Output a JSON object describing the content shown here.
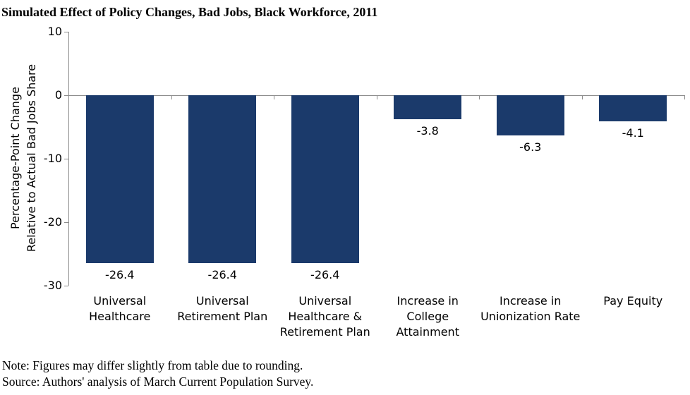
{
  "chart_data": {
    "type": "bar",
    "title": "Simulated Effect of Policy Changes, Bad Jobs, Black Workforce, 2011",
    "ylabel": "Percentage-Point Change\nRelative to Actual Bad Jobs Share",
    "xlabel": "",
    "categories": [
      "Universal\nHealthcare",
      "Universal\nRetirement Plan",
      "Universal\nHealthcare &\nRetirement Plan",
      "Increase in\nCollege\nAttainment",
      "Increase in\nUnionization Rate",
      "Pay Equity"
    ],
    "values": [
      -26.4,
      -26.4,
      -26.4,
      -3.8,
      -6.3,
      -4.1
    ],
    "data_labels": [
      "-26.4",
      "-26.4",
      "-26.4",
      "-3.8",
      "-6.3",
      "-4.1"
    ],
    "yticks": [
      10,
      0,
      -10,
      -20,
      -30
    ],
    "ylim": [
      -30,
      10
    ],
    "grid": "off",
    "legend": "none",
    "bar_color": "#1B3A6B",
    "axis_color": "#8C8C8C"
  },
  "notes": {
    "note_line": "Note: Figures may differ slightly from table due to rounding.",
    "source_line": "Source: Authors' analysis of March Current Population Survey."
  }
}
